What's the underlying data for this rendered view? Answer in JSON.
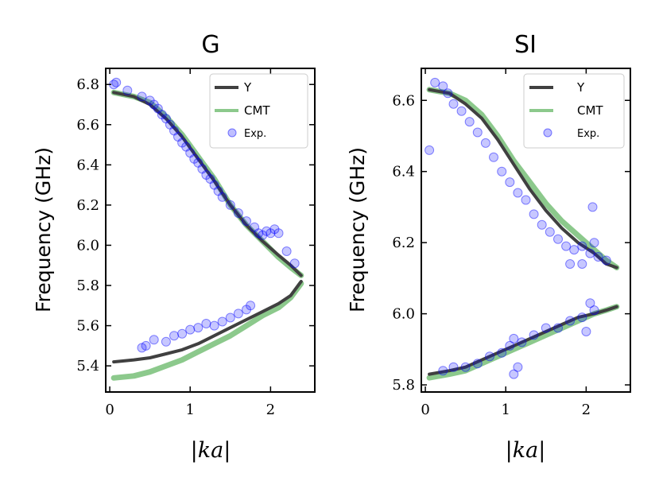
{
  "chart_data": [
    {
      "type": "line",
      "title": "G",
      "xlabel": "|ka|",
      "ylabel": "Frequency (GHz)",
      "xlim": [
        -0.05,
        2.55
      ],
      "ylim": [
        5.27,
        6.88
      ],
      "xticks": [
        0,
        1,
        2
      ],
      "yticks": [
        5.4,
        5.6,
        5.8,
        6.0,
        6.2,
        6.4,
        6.6,
        6.8
      ],
      "xtick_labels": [
        "0",
        "1",
        "2"
      ],
      "ytick_labels": [
        "5.4",
        "5.6",
        "5.8",
        "6.0",
        "6.2",
        "6.4",
        "6.6",
        "6.8"
      ],
      "legend_position": "upper-right",
      "series": [
        {
          "name": "CMT",
          "kind": "line",
          "color": "#8cc98c",
          "branches": [
            {
              "x": [
                0.05,
                0.3,
                0.5,
                0.7,
                0.9,
                1.1,
                1.3,
                1.5,
                1.7,
                1.9,
                2.1,
                2.25,
                2.38
              ],
              "y": [
                6.76,
                6.74,
                6.71,
                6.64,
                6.55,
                6.44,
                6.33,
                6.2,
                6.1,
                6.02,
                5.94,
                5.89,
                5.85
              ]
            },
            {
              "x": [
                0.05,
                0.3,
                0.5,
                0.7,
                0.9,
                1.1,
                1.3,
                1.5,
                1.7,
                1.9,
                2.1,
                2.25,
                2.38
              ],
              "y": [
                5.34,
                5.35,
                5.37,
                5.4,
                5.43,
                5.47,
                5.51,
                5.55,
                5.6,
                5.65,
                5.69,
                5.74,
                5.81
              ]
            }
          ]
        },
        {
          "name": "Y",
          "kind": "line",
          "color": "#404040",
          "branches": [
            {
              "x": [
                0.05,
                0.3,
                0.5,
                0.7,
                0.9,
                1.1,
                1.3,
                1.5,
                1.7,
                1.9,
                2.1,
                2.25,
                2.38
              ],
              "y": [
                6.76,
                6.74,
                6.7,
                6.63,
                6.54,
                6.43,
                6.32,
                6.2,
                6.1,
                6.02,
                5.95,
                5.9,
                5.85
              ]
            },
            {
              "x": [
                0.05,
                0.3,
                0.5,
                0.7,
                0.9,
                1.1,
                1.3,
                1.5,
                1.7,
                1.9,
                2.1,
                2.25,
                2.38
              ],
              "y": [
                5.42,
                5.43,
                5.44,
                5.46,
                5.48,
                5.51,
                5.55,
                5.59,
                5.63,
                5.67,
                5.71,
                5.75,
                5.82
              ]
            }
          ]
        },
        {
          "name": "Exp.",
          "kind": "scatter",
          "color": "#0000ff",
          "x": [
            0.05,
            0.08,
            0.22,
            0.4,
            0.5,
            0.55,
            0.6,
            0.65,
            0.7,
            0.75,
            0.8,
            0.85,
            0.9,
            0.95,
            1.0,
            1.05,
            1.1,
            1.15,
            1.2,
            1.25,
            1.3,
            1.35,
            1.4,
            1.5,
            1.6,
            1.7,
            1.8,
            1.85,
            1.9,
            1.95,
            2.0,
            2.05,
            2.1,
            2.2,
            2.3,
            0.4,
            0.45,
            0.55,
            0.7,
            0.8,
            0.9,
            1.0,
            1.1,
            1.2,
            1.3,
            1.4,
            1.5,
            1.6,
            1.7,
            1.75
          ],
          "y": [
            6.8,
            6.81,
            6.77,
            6.74,
            6.72,
            6.7,
            6.68,
            6.65,
            6.63,
            6.6,
            6.57,
            6.54,
            6.51,
            6.49,
            6.46,
            6.43,
            6.41,
            6.38,
            6.35,
            6.33,
            6.3,
            6.27,
            6.24,
            6.2,
            6.16,
            6.12,
            6.09,
            6.06,
            6.05,
            6.07,
            6.06,
            6.08,
            6.06,
            5.97,
            5.91,
            5.49,
            5.5,
            5.53,
            5.52,
            5.55,
            5.56,
            5.58,
            5.59,
            5.61,
            5.6,
            5.62,
            5.64,
            5.66,
            5.68,
            5.7
          ]
        }
      ]
    },
    {
      "type": "line",
      "title": "SI",
      "xlabel": "|ka|",
      "ylabel": "Frequency (GHz)",
      "xlim": [
        -0.05,
        2.55
      ],
      "ylim": [
        5.78,
        6.69
      ],
      "xticks": [
        0,
        1,
        2
      ],
      "yticks": [
        5.8,
        6.0,
        6.2,
        6.4,
        6.6
      ],
      "xtick_labels": [
        "0",
        "1",
        "2"
      ],
      "ytick_labels": [
        "5.8",
        "6.0",
        "6.2",
        "6.4",
        "6.6"
      ],
      "legend_position": "upper-right",
      "series": [
        {
          "name": "CMT",
          "kind": "line",
          "color": "#8cc98c",
          "branches": [
            {
              "x": [
                0.05,
                0.3,
                0.5,
                0.7,
                0.9,
                1.1,
                1.3,
                1.5,
                1.7,
                1.9,
                2.1,
                2.25,
                2.38
              ],
              "y": [
                6.63,
                6.62,
                6.6,
                6.56,
                6.5,
                6.43,
                6.37,
                6.31,
                6.26,
                6.22,
                6.18,
                6.15,
                6.13
              ]
            },
            {
              "x": [
                0.05,
                0.3,
                0.5,
                0.7,
                0.9,
                1.1,
                1.3,
                1.5,
                1.7,
                1.9,
                2.1,
                2.25,
                2.38
              ],
              "y": [
                5.82,
                5.83,
                5.84,
                5.86,
                5.88,
                5.9,
                5.92,
                5.94,
                5.96,
                5.98,
                6.0,
                6.01,
                6.02
              ]
            }
          ]
        },
        {
          "name": "Y",
          "kind": "line",
          "color": "#404040",
          "branches": [
            {
              "x": [
                0.05,
                0.3,
                0.5,
                0.7,
                0.9,
                1.1,
                1.3,
                1.5,
                1.7,
                1.9,
                2.1,
                2.25,
                2.38
              ],
              "y": [
                6.63,
                6.62,
                6.59,
                6.55,
                6.49,
                6.42,
                6.35,
                6.29,
                6.24,
                6.2,
                6.17,
                6.14,
                6.13
              ]
            },
            {
              "x": [
                0.05,
                0.3,
                0.5,
                0.7,
                0.9,
                1.1,
                1.3,
                1.5,
                1.7,
                1.9,
                2.1,
                2.25,
                2.38
              ],
              "y": [
                5.83,
                5.84,
                5.85,
                5.87,
                5.89,
                5.91,
                5.93,
                5.95,
                5.97,
                5.99,
                6.0,
                6.01,
                6.02
              ]
            }
          ]
        },
        {
          "name": "Exp.",
          "kind": "scatter",
          "color": "#0000ff",
          "x": [
            0.05,
            0.12,
            0.22,
            0.28,
            0.35,
            0.45,
            0.55,
            0.65,
            0.75,
            0.85,
            0.95,
            1.05,
            1.15,
            1.25,
            1.35,
            1.45,
            1.55,
            1.65,
            1.75,
            1.85,
            1.95,
            2.05,
            2.08,
            2.1,
            2.15,
            2.25,
            1.8,
            1.95,
            0.22,
            0.35,
            0.5,
            0.65,
            0.8,
            0.95,
            1.05,
            1.1,
            1.2,
            1.35,
            1.5,
            1.65,
            1.8,
            1.95,
            2.05,
            2.1,
            1.1,
            1.15,
            2.0
          ],
          "y": [
            6.46,
            6.65,
            6.64,
            6.62,
            6.59,
            6.57,
            6.54,
            6.51,
            6.48,
            6.44,
            6.4,
            6.37,
            6.34,
            6.32,
            6.28,
            6.25,
            6.23,
            6.21,
            6.19,
            6.18,
            6.19,
            6.17,
            6.3,
            6.2,
            6.16,
            6.15,
            6.14,
            6.14,
            5.84,
            5.85,
            5.85,
            5.86,
            5.88,
            5.89,
            5.91,
            5.93,
            5.92,
            5.94,
            5.96,
            5.96,
            5.98,
            5.99,
            6.03,
            6.01,
            5.83,
            5.85,
            5.95
          ]
        }
      ]
    }
  ]
}
